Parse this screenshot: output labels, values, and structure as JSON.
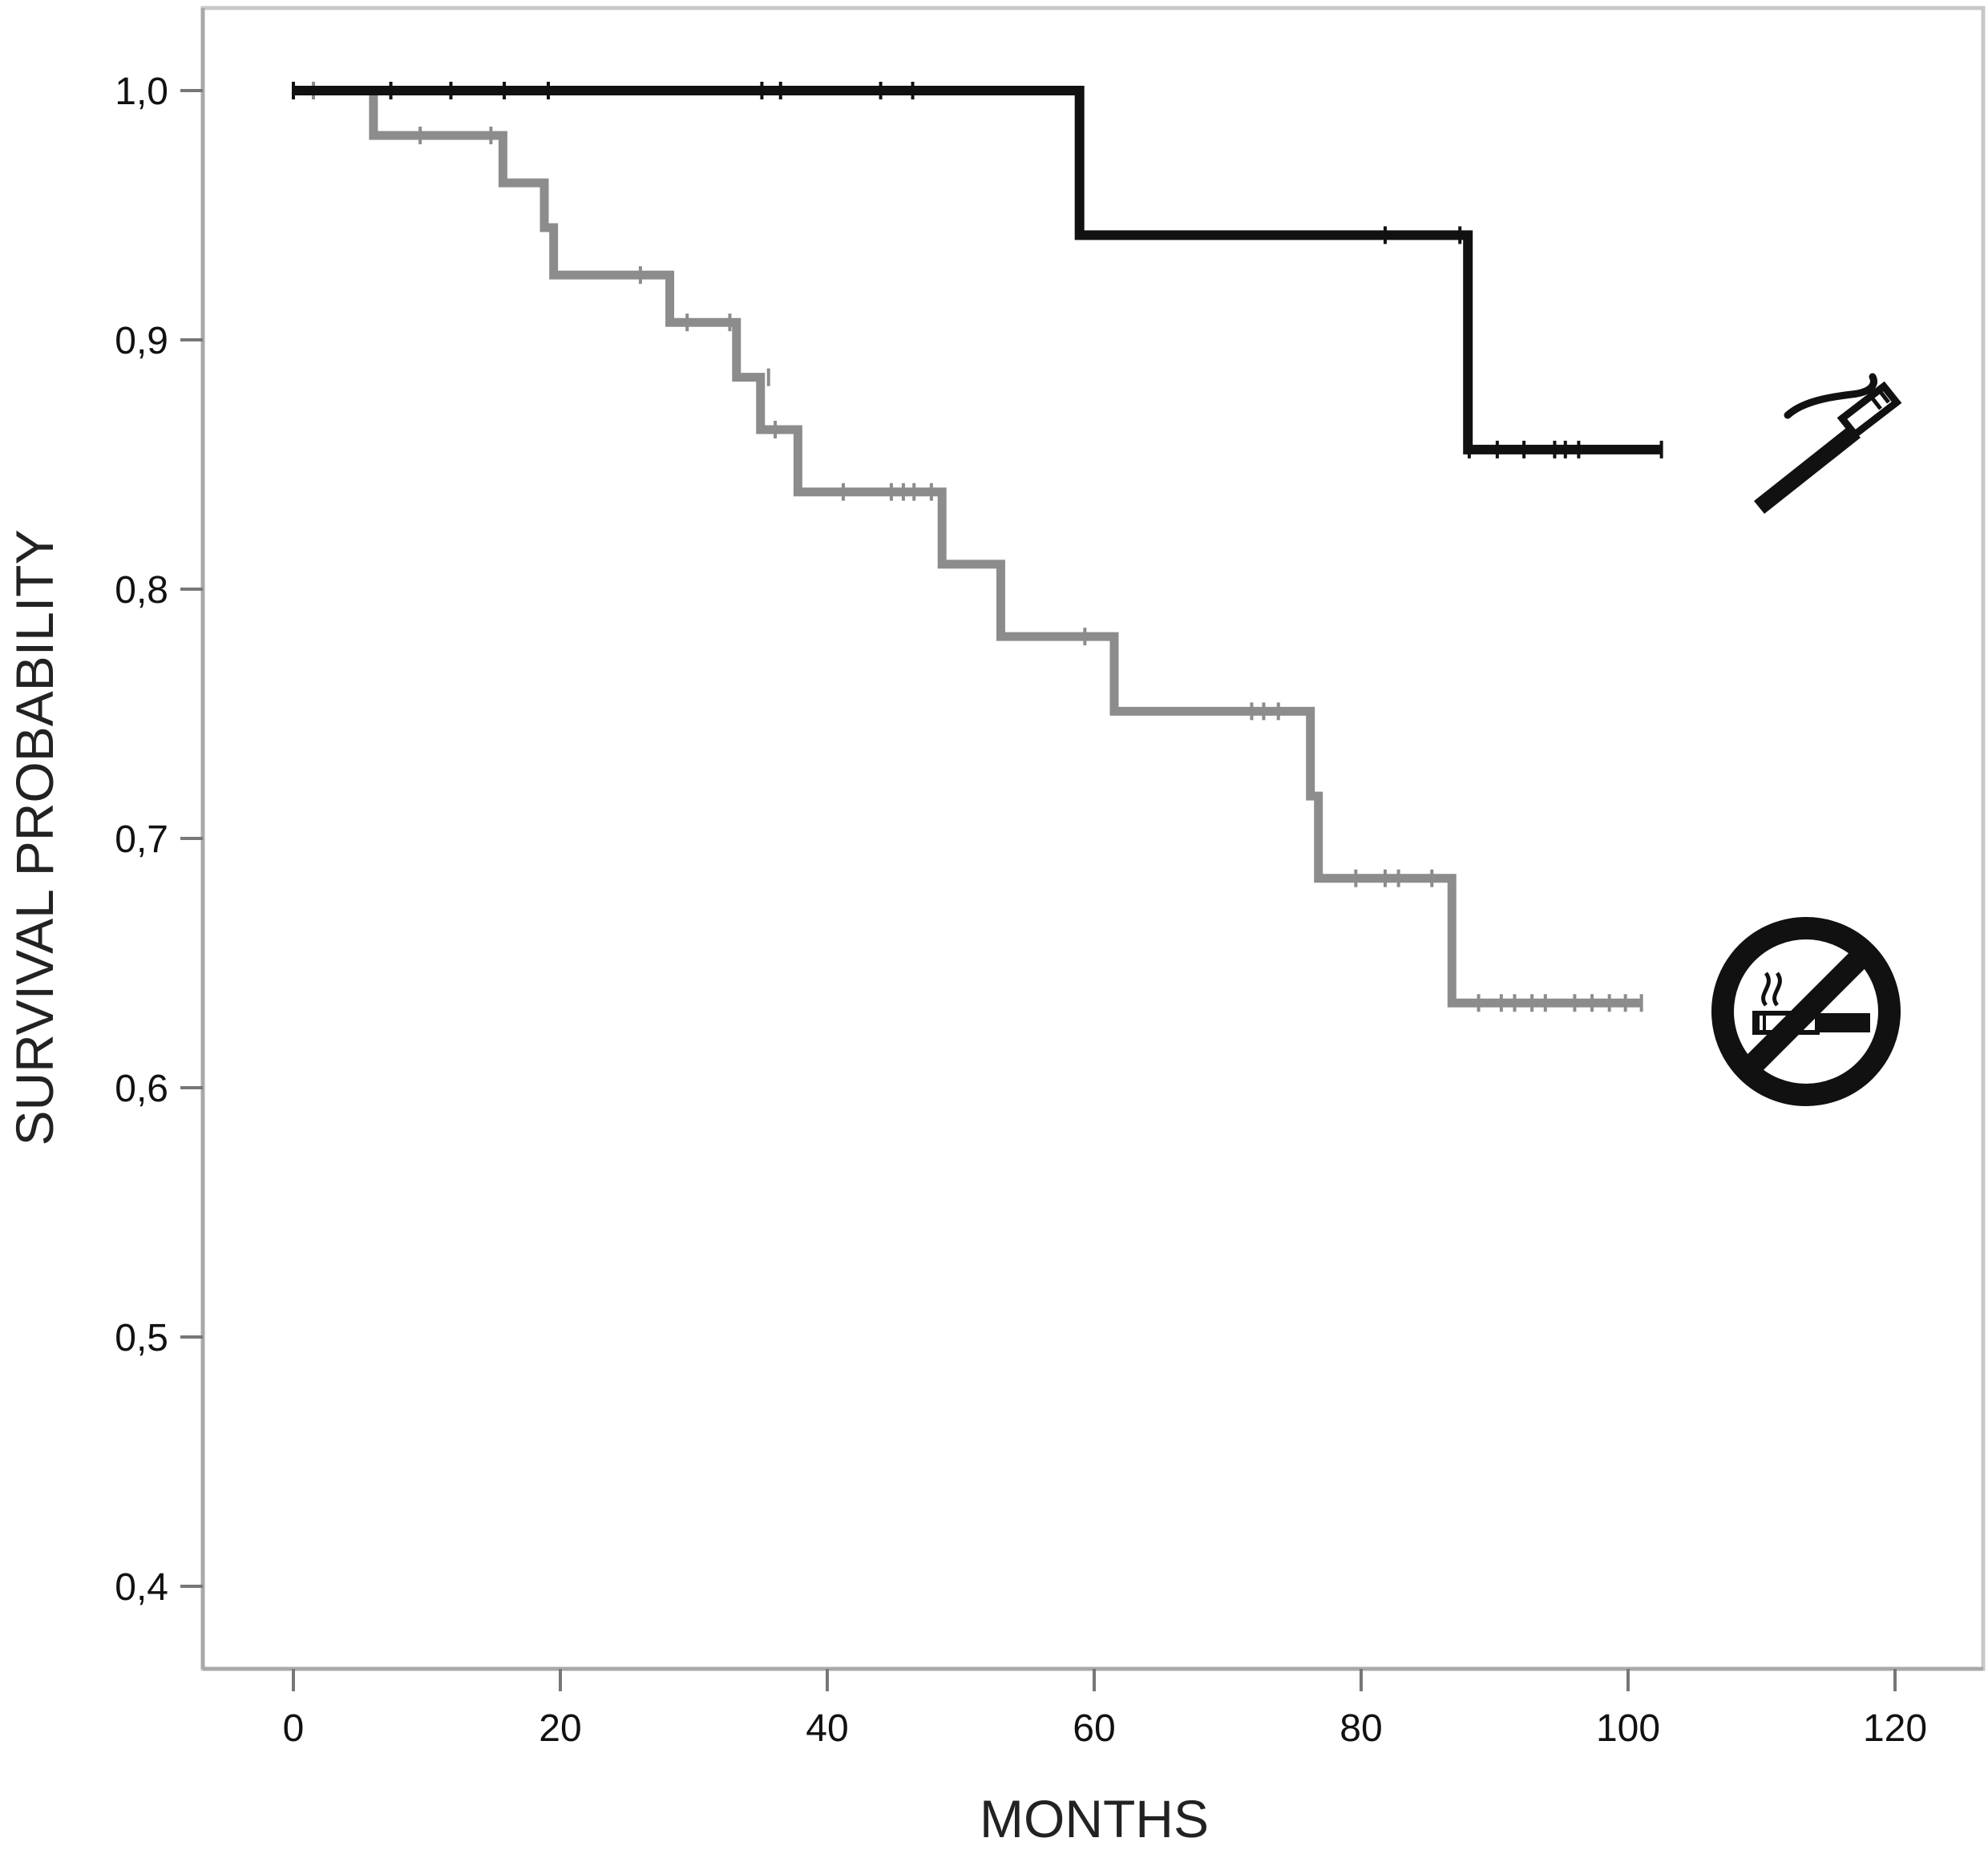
{
  "chart_data": {
    "type": "line",
    "subtype": "kaplan-meier-step",
    "xlabel": "MONTHS",
    "ylabel": "SURVIVAL PROBABILITY",
    "xlim": [
      -10,
      126
    ],
    "ylim": [
      0.365,
      1.034
    ],
    "x_ticks": [
      0,
      20,
      40,
      60,
      80,
      100,
      120
    ],
    "x_tick_labels": [
      "0",
      "20",
      "40",
      "60",
      "80",
      "100",
      "120"
    ],
    "y_ticks": [
      0.4,
      0.5,
      0.6,
      0.7,
      0.8,
      0.9,
      1.0
    ],
    "y_tick_labels": [
      "0,4",
      "0,5",
      "0,6",
      "0,7",
      "0,8",
      "0,9",
      "1,0"
    ],
    "grid": false,
    "legend": "none (icons at right end of curves)",
    "series": [
      {
        "icon": "smoking-icon",
        "color": "#111111",
        "steps": [
          {
            "x": 0,
            "y": 1.0
          },
          {
            "x": 58.9,
            "y": 0.942
          },
          {
            "x": 88.0,
            "y": 0.856
          }
        ],
        "end_x": 102.5,
        "censored": [
          {
            "x": 0,
            "y": 1.0
          },
          {
            "x": 7.3,
            "y": 1.0
          },
          {
            "x": 11.8,
            "y": 1.0
          },
          {
            "x": 15.8,
            "y": 1.0
          },
          {
            "x": 19.1,
            "y": 1.0
          },
          {
            "x": 35.1,
            "y": 1.0
          },
          {
            "x": 36.5,
            "y": 1.0
          },
          {
            "x": 44.0,
            "y": 1.0
          },
          {
            "x": 46.4,
            "y": 1.0
          },
          {
            "x": 81.8,
            "y": 0.942
          },
          {
            "x": 87.4,
            "y": 0.942
          },
          {
            "x": 88.1,
            "y": 0.856
          },
          {
            "x": 90.2,
            "y": 0.856
          },
          {
            "x": 92.2,
            "y": 0.856
          },
          {
            "x": 94.5,
            "y": 0.856
          },
          {
            "x": 95.3,
            "y": 0.856
          },
          {
            "x": 96.3,
            "y": 0.856
          },
          {
            "x": 102.5,
            "y": 0.856
          }
        ]
      },
      {
        "icon": "no-smoking-icon",
        "color": "#8c8c8c",
        "steps": [
          {
            "x": 0,
            "y": 1.0
          },
          {
            "x": 6.0,
            "y": 0.982
          },
          {
            "x": 15.7,
            "y": 0.963
          },
          {
            "x": 18.8,
            "y": 0.945
          },
          {
            "x": 19.5,
            "y": 0.926
          },
          {
            "x": 28.2,
            "y": 0.907
          },
          {
            "x": 33.2,
            "y": 0.885
          },
          {
            "x": 35.0,
            "y": 0.864
          },
          {
            "x": 37.8,
            "y": 0.839
          },
          {
            "x": 48.6,
            "y": 0.81
          },
          {
            "x": 53.0,
            "y": 0.781
          },
          {
            "x": 61.5,
            "y": 0.751
          },
          {
            "x": 76.2,
            "y": 0.717
          },
          {
            "x": 76.8,
            "y": 0.684
          },
          {
            "x": 86.8,
            "y": 0.634
          }
        ],
        "end_x": 101.0,
        "censored": [
          {
            "x": 1.5,
            "y": 1.0
          },
          {
            "x": 9.5,
            "y": 0.982
          },
          {
            "x": 14.8,
            "y": 0.982
          },
          {
            "x": 26.0,
            "y": 0.926
          },
          {
            "x": 29.5,
            "y": 0.907
          },
          {
            "x": 32.7,
            "y": 0.907
          },
          {
            "x": 35.6,
            "y": 0.885
          },
          {
            "x": 36.1,
            "y": 0.864
          },
          {
            "x": 41.2,
            "y": 0.839
          },
          {
            "x": 44.8,
            "y": 0.839
          },
          {
            "x": 45.7,
            "y": 0.839
          },
          {
            "x": 46.5,
            "y": 0.839
          },
          {
            "x": 47.8,
            "y": 0.839
          },
          {
            "x": 59.3,
            "y": 0.781
          },
          {
            "x": 71.8,
            "y": 0.751
          },
          {
            "x": 72.7,
            "y": 0.751
          },
          {
            "x": 73.8,
            "y": 0.751
          },
          {
            "x": 79.6,
            "y": 0.684
          },
          {
            "x": 81.8,
            "y": 0.684
          },
          {
            "x": 82.8,
            "y": 0.684
          },
          {
            "x": 85.3,
            "y": 0.684
          },
          {
            "x": 88.8,
            "y": 0.634
          },
          {
            "x": 90.5,
            "y": 0.634
          },
          {
            "x": 91.5,
            "y": 0.634
          },
          {
            "x": 92.8,
            "y": 0.634
          },
          {
            "x": 93.8,
            "y": 0.634
          },
          {
            "x": 96.0,
            "y": 0.634
          },
          {
            "x": 97.3,
            "y": 0.634
          },
          {
            "x": 98.6,
            "y": 0.634
          },
          {
            "x": 99.8,
            "y": 0.634
          },
          {
            "x": 101.0,
            "y": 0.634
          }
        ]
      }
    ]
  }
}
